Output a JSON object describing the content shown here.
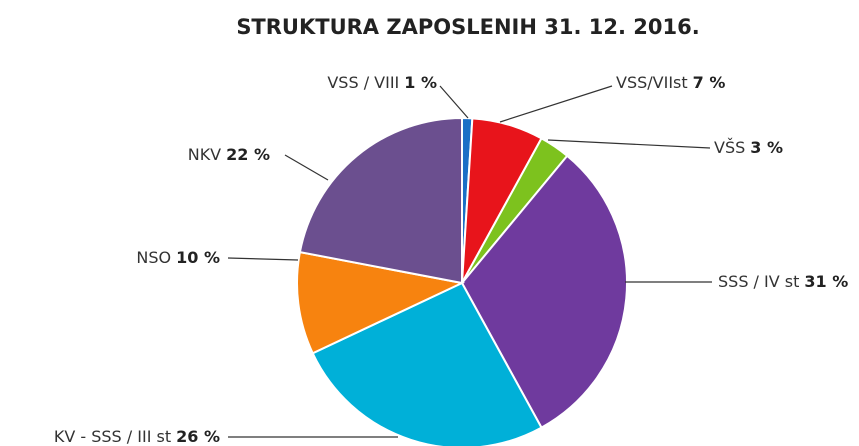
{
  "chart_data": {
    "type": "pie",
    "title": "STRUKTURA ZAPOSLENIH 31. 12. 2016.",
    "categories": [
      "VSS / VIII",
      "VSS/VIIst",
      "VŠS",
      "SSS / IV st",
      "KV - SSS / III st",
      "NSO",
      "NKV"
    ],
    "values": [
      1,
      7,
      3,
      31,
      26,
      10,
      22
    ],
    "value_labels": [
      "1 %",
      "7 %",
      "3 %",
      "31 %",
      "26 %",
      "10 %",
      "22 %"
    ],
    "colors": [
      "#1b6fc6",
      "#e8141b",
      "#7dc21e",
      "#6f3a9e",
      "#00b0d8",
      "#f7830f",
      "#6b4f8f"
    ]
  }
}
